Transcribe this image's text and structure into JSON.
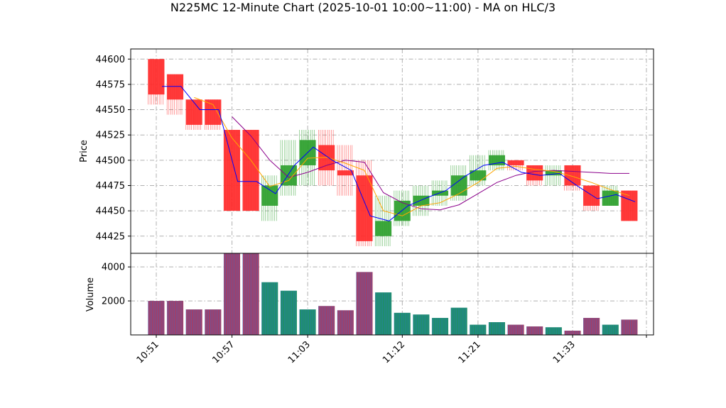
{
  "chart_data": {
    "type": "candlestick",
    "title": "N225MC 12-Minute Chart (2025-10-01 10:00~11:00) - MA on HLC/3",
    "price_panel": {
      "ylabel": "Price",
      "ylim": [
        44408,
        44610
      ],
      "yticks": [
        44425,
        44450,
        44475,
        44500,
        44525,
        44550,
        44575,
        44600
      ]
    },
    "volume_panel": {
      "ylabel": "Volume",
      "ylim": [
        0,
        4800
      ],
      "yticks": [
        2000,
        4000
      ]
    },
    "x_ticks": [
      "10:51",
      "10:57",
      "11:03",
      "11:12",
      "11:21",
      "11:33",
      ""
    ],
    "grid": true,
    "colors": {
      "up": "#2ca02c",
      "down": "#ff2a2a",
      "vol_up": "#1f8f6a",
      "vol_down": "#a0406a",
      "ma_fast": "#0000ff",
      "ma_mid": "#ffa500",
      "ma_slow": "#8b008b"
    },
    "candles": [
      {
        "open": 44600,
        "high": 44600,
        "low": 44555,
        "close": 44565,
        "volume": 2000
      },
      {
        "open": 44585,
        "high": 44585,
        "low": 44545,
        "close": 44560,
        "volume": 2000
      },
      {
        "open": 44560,
        "high": 44560,
        "low": 44530,
        "close": 44535,
        "volume": 1500
      },
      {
        "open": 44560,
        "high": 44560,
        "low": 44530,
        "close": 44535,
        "volume": 1500
      },
      {
        "open": 44530,
        "high": 44530,
        "low": 44450,
        "close": 44450,
        "volume": 4800
      },
      {
        "open": 44530,
        "high": 44530,
        "low": 44450,
        "close": 44450,
        "volume": 4800
      },
      {
        "open": 44455,
        "high": 44485,
        "low": 44440,
        "close": 44475,
        "volume": 3100
      },
      {
        "open": 44475,
        "high": 44520,
        "low": 44465,
        "close": 44495,
        "volume": 2600
      },
      {
        "open": 44495,
        "high": 44530,
        "low": 44475,
        "close": 44520,
        "volume": 1500
      },
      {
        "open": 44515,
        "high": 44530,
        "low": 44475,
        "close": 44490,
        "volume": 1700
      },
      {
        "open": 44490,
        "high": 44515,
        "low": 44465,
        "close": 44485,
        "volume": 1450
      },
      {
        "open": 44485,
        "high": 44500,
        "low": 44415,
        "close": 44420,
        "volume": 3700
      },
      {
        "open": 44425,
        "high": 44465,
        "low": 44415,
        "close": 44440,
        "volume": 2500
      },
      {
        "open": 44440,
        "high": 44470,
        "low": 44435,
        "close": 44460,
        "volume": 1300
      },
      {
        "open": 44455,
        "high": 44475,
        "low": 44445,
        "close": 44465,
        "volume": 1200
      },
      {
        "open": 44465,
        "high": 44480,
        "low": 44455,
        "close": 44470,
        "volume": 1000
      },
      {
        "open": 44465,
        "high": 44495,
        "low": 44460,
        "close": 44485,
        "volume": 1600
      },
      {
        "open": 44480,
        "high": 44505,
        "low": 44475,
        "close": 44490,
        "volume": 600
      },
      {
        "open": 44495,
        "high": 44510,
        "low": 44490,
        "close": 44505,
        "volume": 750
      },
      {
        "open": 44500,
        "high": 44500,
        "low": 44490,
        "close": 44495,
        "volume": 600
      },
      {
        "open": 44495,
        "high": 44495,
        "low": 44475,
        "close": 44480,
        "volume": 500
      },
      {
        "open": 44485,
        "high": 44495,
        "low": 44475,
        "close": 44490,
        "volume": 450
      },
      {
        "open": 44495,
        "high": 44495,
        "low": 44470,
        "close": 44475,
        "volume": 250
      },
      {
        "open": 44475,
        "high": 44475,
        "low": 44450,
        "close": 44455,
        "volume": 1000
      },
      {
        "open": 44455,
        "high": 44475,
        "low": 44455,
        "close": 44470,
        "volume": 600
      },
      {
        "open": 44470,
        "high": 44470,
        "low": 44440,
        "close": 44440,
        "volume": 900
      }
    ],
    "ma_fast": [
      44573,
      44573,
      44550,
      44550,
      44479,
      44479,
      44467,
      44495,
      44513,
      44500,
      44490,
      44445,
      44440,
      44455,
      44463,
      44470,
      44484,
      44495,
      44498,
      44488,
      44485,
      44487,
      44474,
      44462,
      44466,
      44459
    ],
    "ma_mid": [
      null,
      null,
      44562,
      44555,
      44522,
      44500,
      44474,
      44480,
      44502,
      44503,
      44497,
      44490,
      44450,
      44445,
      44455,
      44458,
      44467,
      44478,
      44492,
      44494,
      44491,
      44489,
      44484,
      44478,
      44471,
      44465
    ],
    "ma_slow": [
      null,
      null,
      null,
      null,
      44543,
      44524,
      44500,
      44483,
      44488,
      44495,
      44500,
      44498,
      44468,
      44458,
      44452,
      44451,
      44456,
      44467,
      44478,
      44485,
      44489,
      44490,
      44489,
      44488,
      44487,
      44487
    ]
  }
}
